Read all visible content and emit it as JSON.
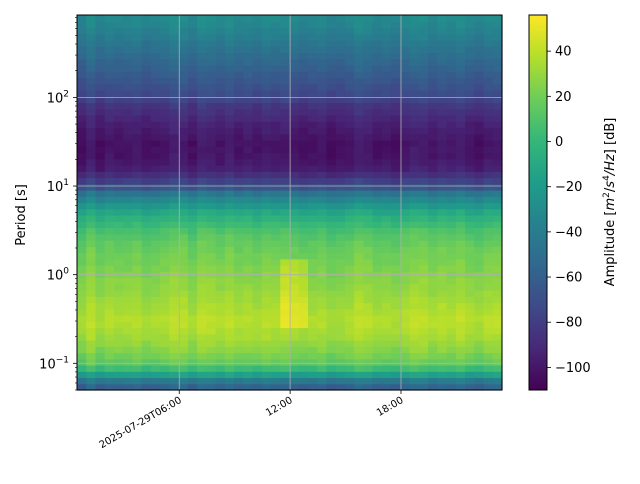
{
  "chart_data": {
    "type": "heatmap",
    "title": "",
    "xlabel": "",
    "ylabel": "Period [s]",
    "y_scale": "log",
    "ylim": [
      0.05,
      850
    ],
    "x_start": "2025-07-29T00:28",
    "x_end": "2025-07-29T23:28",
    "x_ticks": [
      {
        "time": "2025-07-29T06:00",
        "label": "2025-07-29T06:00"
      },
      {
        "time": "2025-07-29T12:00",
        "label": "12:00"
      },
      {
        "time": "2025-07-29T18:00",
        "label": "18:00"
      }
    ],
    "y_ticks": [
      {
        "value": 0.1,
        "base": "10",
        "exp": "−1"
      },
      {
        "value": 1,
        "base": "10",
        "exp": "0"
      },
      {
        "value": 10,
        "base": "10",
        "exp": "1"
      },
      {
        "value": 100,
        "base": "10",
        "exp": "2"
      }
    ],
    "grid": true,
    "colormap": "viridis",
    "colorbar": {
      "label": "Amplitude [m²/s⁴/Hz] [dB]",
      "label_base": "Amplitude [",
      "label_m": "m",
      "label_m_exp": "2",
      "label_slash": "/",
      "label_s": "s",
      "label_s_exp": "4",
      "label_hz": "/Hz",
      "label_tail": "] [dB]",
      "range": [
        -110,
        56
      ],
      "ticks": [
        -100,
        -80,
        -60,
        -40,
        -20,
        0,
        20,
        40
      ],
      "tick_labels": [
        "−100",
        "−80",
        "−60",
        "−40",
        "−20",
        "0",
        "20",
        "40"
      ]
    },
    "period_profile": [
      {
        "period": 0.05,
        "db": -65
      },
      {
        "period": 0.06,
        "db": -50
      },
      {
        "period": 0.07,
        "db": -30
      },
      {
        "period": 0.08,
        "db": -5
      },
      {
        "period": 0.1,
        "db": 15
      },
      {
        "period": 0.15,
        "db": 27
      },
      {
        "period": 0.2,
        "db": 33
      },
      {
        "period": 0.3,
        "db": 38
      },
      {
        "period": 0.5,
        "db": 33
      },
      {
        "period": 0.7,
        "db": 28
      },
      {
        "period": 1,
        "db": 25
      },
      {
        "period": 2,
        "db": 18
      },
      {
        "period": 3,
        "db": 10
      },
      {
        "period": 5,
        "db": -10
      },
      {
        "period": 8,
        "db": -40
      },
      {
        "period": 10,
        "db": -70
      },
      {
        "period": 15,
        "db": -95
      },
      {
        "period": 20,
        "db": -100
      },
      {
        "period": 30,
        "db": -102
      },
      {
        "period": 50,
        "db": -95
      },
      {
        "period": 80,
        "db": -85
      },
      {
        "period": 100,
        "db": -75
      },
      {
        "period": 200,
        "db": -60
      },
      {
        "period": 400,
        "db": -45
      },
      {
        "period": 600,
        "db": -35
      },
      {
        "period": 850,
        "db": -30
      }
    ]
  }
}
